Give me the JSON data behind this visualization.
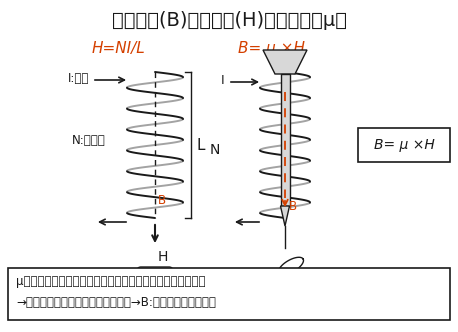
{
  "title": "磁束密度(B)と磁化力(H)と透磁率（μ）",
  "formula_left": "H=NI/L",
  "formula_right": "B= μ ×H",
  "formula_box": "B= μ ×H",
  "label_I_left": "I:電流",
  "label_N_left": "N:巻線数",
  "label_L": "L",
  "label_B_left": "B",
  "label_H": "H",
  "label_I_right": "I",
  "label_N_right": "N",
  "label_B_right": "B",
  "footer_line1": "μの大きい鉄芯をコイルの中に入れるとクリップがくっつく",
  "footer_line2": "→電磁石：くぎ（鉄）が磁石になる→B:磁化されやすい指標",
  "red_color": "#d44000",
  "black_color": "#1a1a1a",
  "bg_color": "#ffffff"
}
